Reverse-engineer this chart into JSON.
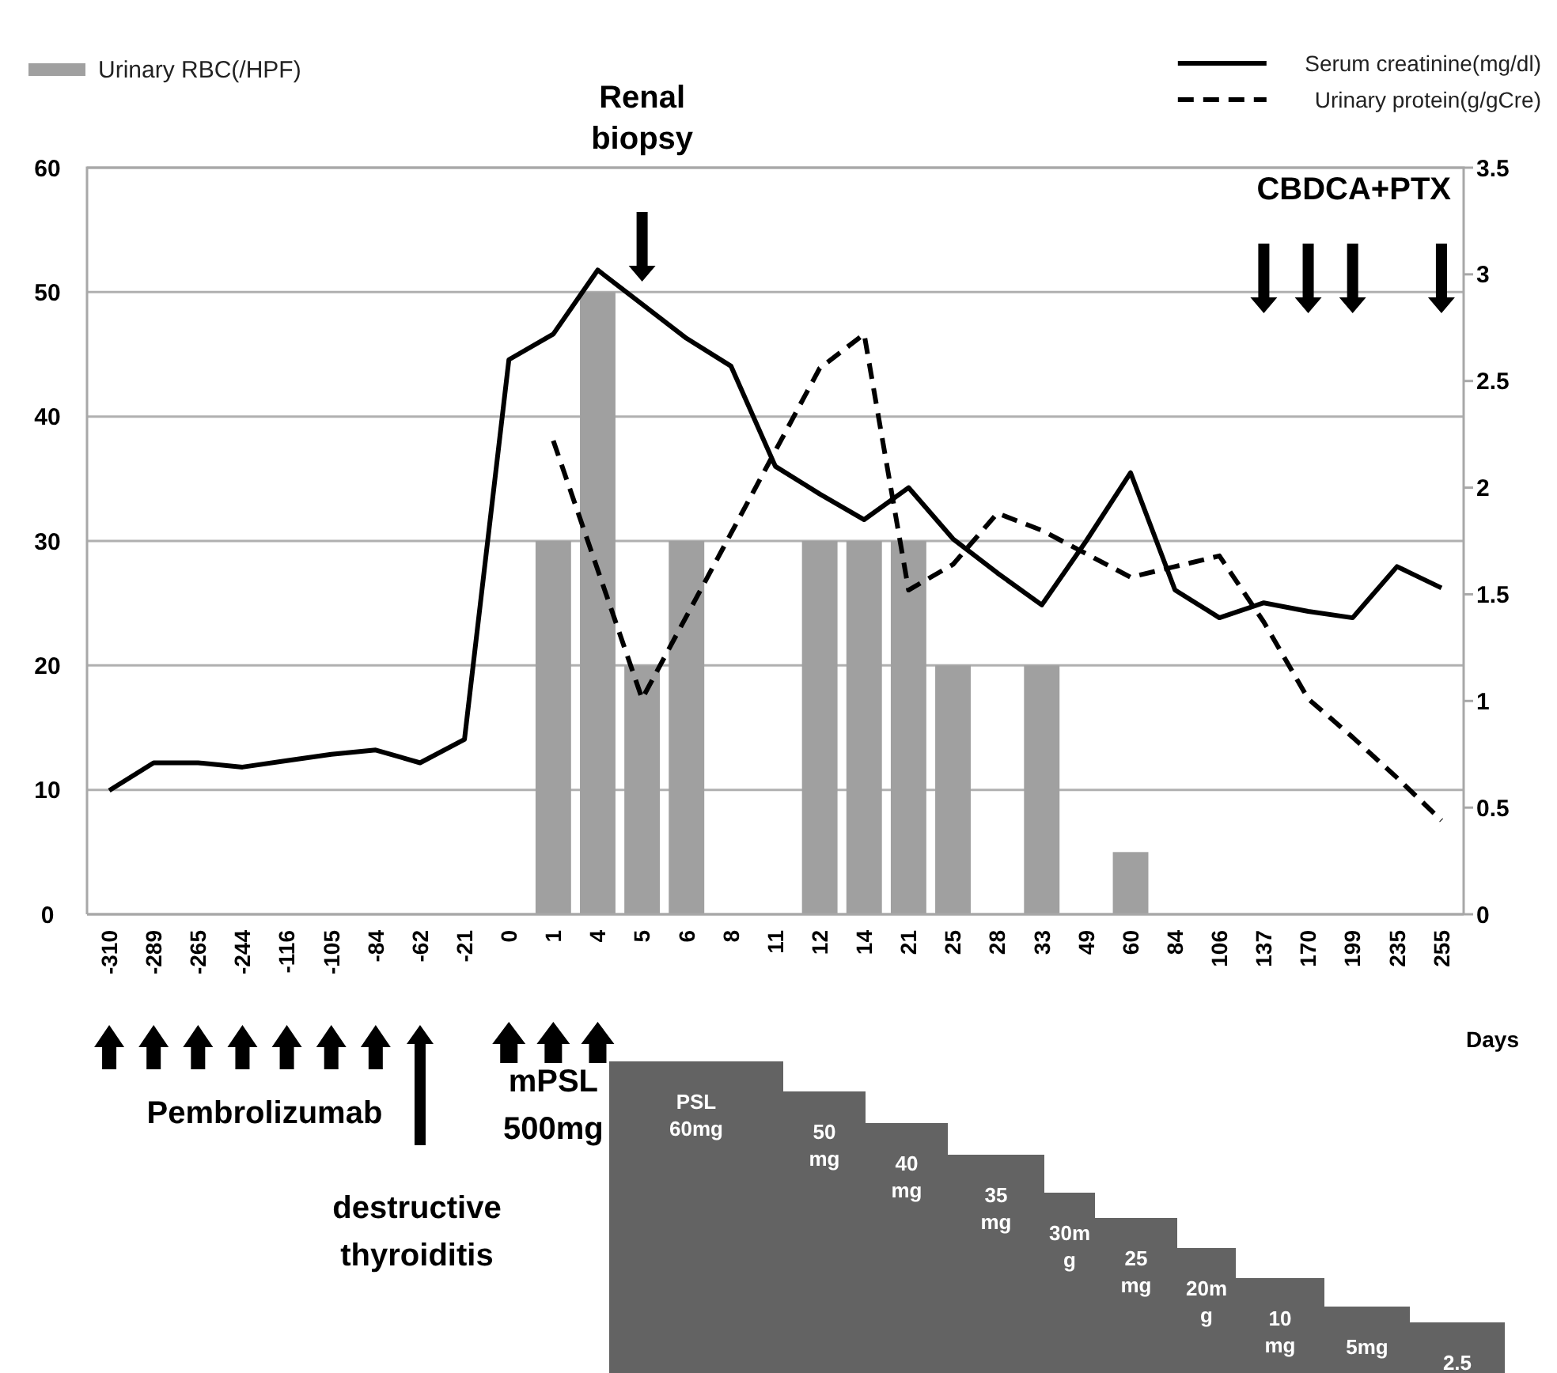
{
  "chart_data": {
    "type": "bar",
    "xlabel": "Days",
    "categories": [
      "-310",
      "-289",
      "-265",
      "-244",
      "-116",
      "-105",
      "-84",
      "-62",
      "-21",
      "0",
      "1",
      "4",
      "5",
      "6",
      "8",
      "11",
      "12",
      "14",
      "21",
      "25",
      "28",
      "33",
      "49",
      "60",
      "84",
      "106",
      "137",
      "170",
      "199",
      "235",
      "255"
    ],
    "series": [
      {
        "name": "Urinary RBC(/HPF)",
        "color": "#a0a0a0",
        "values": [
          null,
          null,
          null,
          null,
          null,
          null,
          null,
          null,
          null,
          null,
          30,
          50,
          20,
          30,
          null,
          null,
          30,
          30,
          30,
          20,
          null,
          20,
          null,
          5,
          null,
          null,
          null,
          null,
          null,
          null,
          null
        ]
      },
      {
        "name": "Serum creatinine(mg/dl)",
        "type": "line",
        "axis": "y2",
        "line_style": "solid",
        "color": "#000000",
        "values": [
          0.58,
          0.71,
          0.71,
          0.69,
          0.72,
          0.75,
          0.77,
          0.71,
          0.82,
          2.6,
          2.72,
          3.02,
          2.86,
          2.7,
          2.57,
          2.1,
          1.97,
          1.85,
          2.0,
          1.76,
          1.6,
          1.45,
          1.75,
          2.07,
          1.52,
          1.39,
          1.46,
          1.42,
          1.39,
          1.63,
          1.53
        ]
      },
      {
        "name": "Urinary protein(g/gCre)",
        "type": "line",
        "axis": "y2",
        "line_style": "dashed",
        "color": "#000000",
        "values": [
          null,
          null,
          null,
          null,
          null,
          null,
          null,
          null,
          null,
          null,
          2.22,
          null,
          1.01,
          null,
          null,
          null,
          2.56,
          2.72,
          1.52,
          1.64,
          1.88,
          1.8,
          1.69,
          1.58,
          1.63,
          1.68,
          1.37,
          1.01,
          0.83,
          0.64,
          0.44
        ]
      }
    ],
    "ylim": [
      0,
      60
    ],
    "yticks": [
      0,
      10,
      20,
      30,
      40,
      50,
      60
    ],
    "y2lim": [
      0,
      3.5
    ],
    "y2ticks": [
      0,
      0.5,
      1,
      1.5,
      2,
      2.5,
      3,
      3.5
    ],
    "grid": "y",
    "legend": "top",
    "marker": "none",
    "annotations": [
      "Renal biopsy",
      "CBDCA+PTX",
      "Pembrolizumab",
      "destructive thyroiditis",
      "mPSL 500mg",
      "PSL 60mg",
      "50 mg",
      "40 mg",
      "35 mg",
      "30mg",
      "25 mg",
      "20mg",
      "10 mg",
      "5mg",
      "2.5"
    ]
  }
}
